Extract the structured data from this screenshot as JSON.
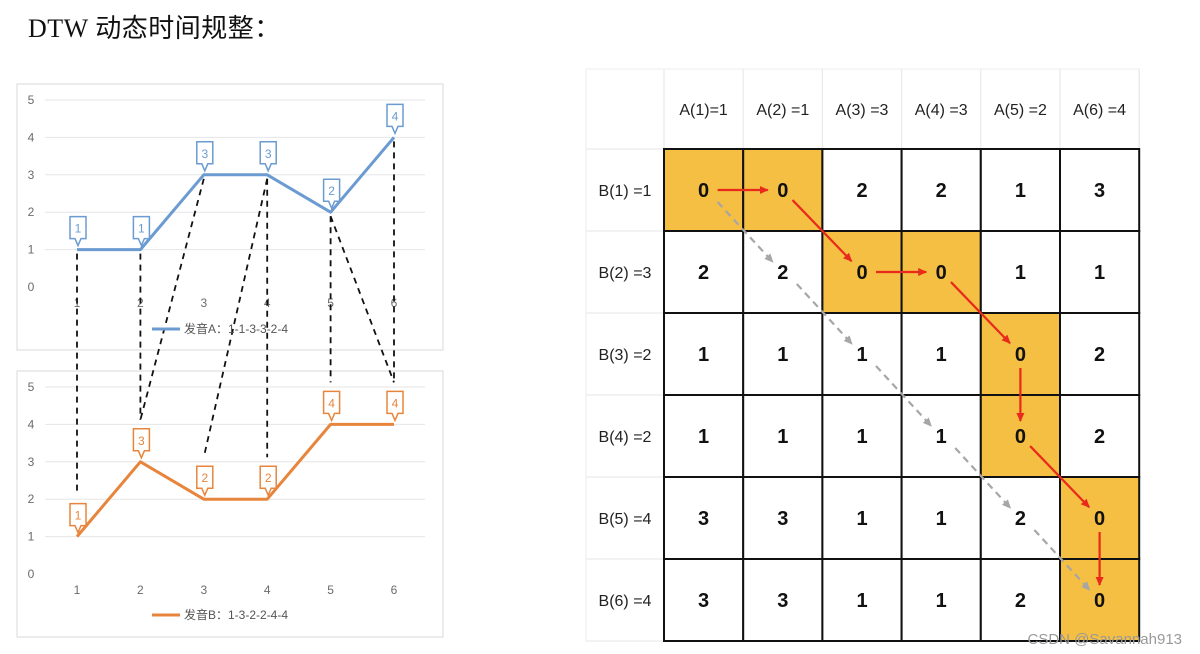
{
  "page": {
    "title": "DTW 动态时间规整：",
    "watermark": "CSDN @Savannah913"
  },
  "chart_data": [
    {
      "type": "line",
      "x": [
        "1",
        "2",
        "3",
        "4",
        "5",
        "6"
      ],
      "series": [
        {
          "name": "发音A：1-1-3-3-2-4",
          "values": [
            1,
            1,
            3,
            3,
            2,
            4
          ]
        }
      ],
      "data_labels": [
        "1",
        "1",
        "3",
        "3",
        "2",
        "4"
      ],
      "ylim": [
        0,
        5
      ],
      "y_ticks": [
        "0",
        "1",
        "2",
        "3",
        "4",
        "5"
      ],
      "grid": true,
      "legend": "bottom",
      "color": "#6b9bd1"
    },
    {
      "type": "line",
      "x": [
        "1",
        "2",
        "3",
        "4",
        "5",
        "6"
      ],
      "series": [
        {
          "name": "发音B：1-3-2-2-4-4",
          "values": [
            1,
            3,
            2,
            2,
            4,
            4
          ]
        }
      ],
      "data_labels": [
        "1",
        "3",
        "2",
        "2",
        "4",
        "4"
      ],
      "ylim": [
        0,
        5
      ],
      "y_ticks": [
        "0",
        "1",
        "2",
        "3",
        "4",
        "5"
      ],
      "grid": true,
      "legend": "bottom",
      "color": "#e8853d"
    },
    {
      "type": "table",
      "col_headers": [
        "A(1)=1",
        "A(2) =1",
        "A(3) =3",
        "A(4) =3",
        "A(5) =2",
        "A(6) =4"
      ],
      "row_headers": [
        "B(1) =1",
        "B(2) =3",
        "B(3) =2",
        "B(4) =2",
        "B(5) =4",
        "B(6) =4"
      ],
      "cells": [
        [
          0,
          0,
          2,
          2,
          1,
          3
        ],
        [
          2,
          2,
          0,
          0,
          1,
          1
        ],
        [
          1,
          1,
          1,
          1,
          0,
          2
        ],
        [
          1,
          1,
          1,
          1,
          0,
          2
        ],
        [
          3,
          3,
          1,
          1,
          2,
          0
        ],
        [
          3,
          3,
          1,
          1,
          2,
          0
        ]
      ],
      "path": [
        [
          0,
          0
        ],
        [
          0,
          1
        ],
        [
          1,
          2
        ],
        [
          1,
          3
        ],
        [
          2,
          4
        ],
        [
          3,
          4
        ],
        [
          4,
          5
        ],
        [
          5,
          5
        ]
      ],
      "diagonal": [
        [
          0,
          0
        ],
        [
          1,
          1
        ],
        [
          2,
          2
        ],
        [
          3,
          3
        ],
        [
          4,
          4
        ],
        [
          5,
          5
        ]
      ],
      "colors": {
        "highlight": "#f4bf42",
        "path_arrow": "#e8291c",
        "diagonal_arrow": "#a6a6a6"
      }
    }
  ],
  "alignment": {
    "pairs": [
      [
        1,
        1
      ],
      [
        2,
        2
      ],
      [
        3,
        2
      ],
      [
        4,
        3
      ],
      [
        4,
        4
      ],
      [
        5,
        5
      ],
      [
        5,
        6
      ],
      [
        6,
        6
      ]
    ]
  }
}
